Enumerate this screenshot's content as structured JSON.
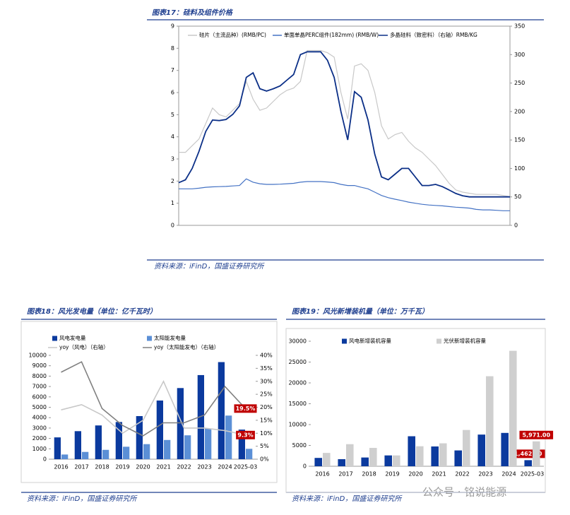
{
  "chart_data": [
    {
      "type": "line",
      "title": "图表17：硅料及组件价格",
      "source": "资料来源：iFinD，国盛证券研究所",
      "ylim": [
        0,
        9
      ],
      "yticks": [
        0,
        1,
        2,
        3,
        4,
        5,
        6,
        7,
        8,
        9
      ],
      "y2lim": [
        0,
        350
      ],
      "y2ticks": [
        0,
        50,
        100,
        150,
        200,
        250,
        300,
        350
      ],
      "series": [
        {
          "name": "硅片（主流品种）(RMB/PC)",
          "color": "#c8c8c8",
          "values": [
            3.3,
            3.3,
            3.6,
            3.9,
            4.6,
            5.3,
            5.0,
            4.9,
            5.2,
            5.5,
            6.5,
            5.7,
            5.2,
            5.3,
            5.6,
            5.9,
            6.1,
            6.2,
            6.5,
            7.9,
            7.9,
            7.9,
            7.8,
            7.6,
            6.0,
            4.8,
            7.2,
            7.3,
            7.0,
            6.0,
            4.5,
            3.9,
            4.1,
            4.2,
            3.8,
            3.5,
            3.3,
            3.0,
            2.7,
            2.3,
            1.9,
            1.6,
            1.5,
            1.45,
            1.4,
            1.4,
            1.4,
            1.4,
            1.35,
            1.3
          ]
        },
        {
          "name": "单面单晶PERC组件(182mm) (RMB/W)",
          "color": "#4472c4",
          "values": [
            1.65,
            1.65,
            1.65,
            1.68,
            1.72,
            1.74,
            1.75,
            1.76,
            1.78,
            1.8,
            2.1,
            1.95,
            1.88,
            1.85,
            1.85,
            1.86,
            1.88,
            1.9,
            1.95,
            1.98,
            1.98,
            1.98,
            1.96,
            1.93,
            1.85,
            1.8,
            1.8,
            1.72,
            1.65,
            1.5,
            1.35,
            1.25,
            1.18,
            1.12,
            1.05,
            1.0,
            0.95,
            0.92,
            0.9,
            0.88,
            0.85,
            0.82,
            0.8,
            0.78,
            0.72,
            0.7,
            0.7,
            0.68,
            0.66,
            0.66
          ]
        },
        {
          "name": "多晶硅料（致密料）（右轴）RMB/KG",
          "color": "#0b2f87",
          "axis": "y2",
          "values": [
            75,
            80,
            100,
            130,
            165,
            185,
            184,
            186,
            195,
            210,
            260,
            268,
            240,
            236,
            240,
            245,
            255,
            265,
            300,
            305,
            305,
            305,
            290,
            260,
            200,
            150,
            235,
            225,
            185,
            125,
            85,
            80,
            90,
            100,
            100,
            85,
            70,
            70,
            72,
            68,
            62,
            56,
            52,
            50,
            50,
            50,
            50,
            50,
            50,
            50
          ]
        }
      ]
    },
    {
      "type": "bar",
      "title": "图表18：风光发电量（单位：亿千瓦时）",
      "source": "资料来源：iFinD，国盛证券研究所",
      "categories": [
        "2016",
        "2017",
        "2018",
        "2019",
        "2020",
        "2021",
        "2022",
        "2023",
        "2024",
        "2025-03"
      ],
      "ylim": [
        0,
        10000
      ],
      "yticks": [
        0,
        1000,
        2000,
        3000,
        4000,
        5000,
        6000,
        7000,
        8000,
        9000,
        10000
      ],
      "y2lim": [
        0,
        40
      ],
      "y2ticks": [
        {
          "value": 0,
          "label": "0%"
        },
        {
          "value": 5,
          "label": "5%"
        },
        {
          "value": 10,
          "label": "10%"
        },
        {
          "value": 15,
          "label": "15%"
        },
        {
          "value": 20,
          "label": "20%"
        },
        {
          "value": 25,
          "label": "25%"
        },
        {
          "value": 30,
          "label": "30%"
        },
        {
          "value": 35,
          "label": "35%"
        },
        {
          "value": 40,
          "label": "40%"
        }
      ],
      "series": [
        {
          "name": "风电发电量",
          "color": "#0b3a9e",
          "values": [
            2100,
            2700,
            3250,
            3580,
            4150,
            5650,
            6850,
            8100,
            9350,
            2850
          ]
        },
        {
          "name": "太阳能发电量",
          "color": "#5b8fd6",
          "values": [
            450,
            700,
            900,
            1200,
            1450,
            1850,
            2300,
            2950,
            4200,
            1000
          ]
        },
        {
          "name": "yoy（风电）（右轴）",
          "color": "#c8c8c8",
          "axis": "y2",
          "values": [
            19,
            21,
            17,
            10,
            15,
            30,
            12,
            12,
            11,
            9.3
          ],
          "value_labels": [
            null,
            null,
            null,
            null,
            null,
            null,
            null,
            null,
            null,
            "9.3%"
          ]
        },
        {
          "name": "yoy（太阳能发电）（右轴）",
          "color": "#808080",
          "axis": "y2",
          "values": [
            33.5,
            37.5,
            19.5,
            13,
            9,
            14,
            14,
            17,
            28,
            19.5
          ],
          "value_labels": [
            null,
            null,
            null,
            null,
            null,
            null,
            null,
            null,
            null,
            "19.5%"
          ]
        }
      ]
    },
    {
      "type": "bar",
      "title": "图表19：风光新增装机量（单位：万千瓦）",
      "source": "资料来源：iFinD，国盛证券研究所",
      "categories": [
        "2016",
        "2017",
        "2018",
        "2019",
        "2020",
        "2021",
        "2022",
        "2023",
        "2024",
        "2025-03"
      ],
      "ylim": [
        0,
        30000
      ],
      "yticks": [
        0,
        5000,
        10000,
        15000,
        20000,
        25000,
        30000
      ],
      "series": [
        {
          "name": "风电新增装机容量",
          "color": "#0b3a9e",
          "values": [
            2000,
            1700,
            2100,
            2600,
            7200,
            4750,
            3800,
            7600,
            8000,
            1462
          ],
          "value_labels": [
            null,
            null,
            null,
            null,
            null,
            null,
            null,
            null,
            null,
            "1,462.00"
          ]
        },
        {
          "name": "光伏新增装机容量",
          "color": "#cfcfcf",
          "values": [
            3200,
            5300,
            4400,
            2600,
            4800,
            5500,
            8700,
            21600,
            27700,
            5971
          ],
          "value_labels": [
            null,
            null,
            null,
            null,
            null,
            null,
            null,
            null,
            null,
            "5,971.00"
          ]
        }
      ]
    }
  ],
  "watermark": "公众号 · 铭说能源"
}
